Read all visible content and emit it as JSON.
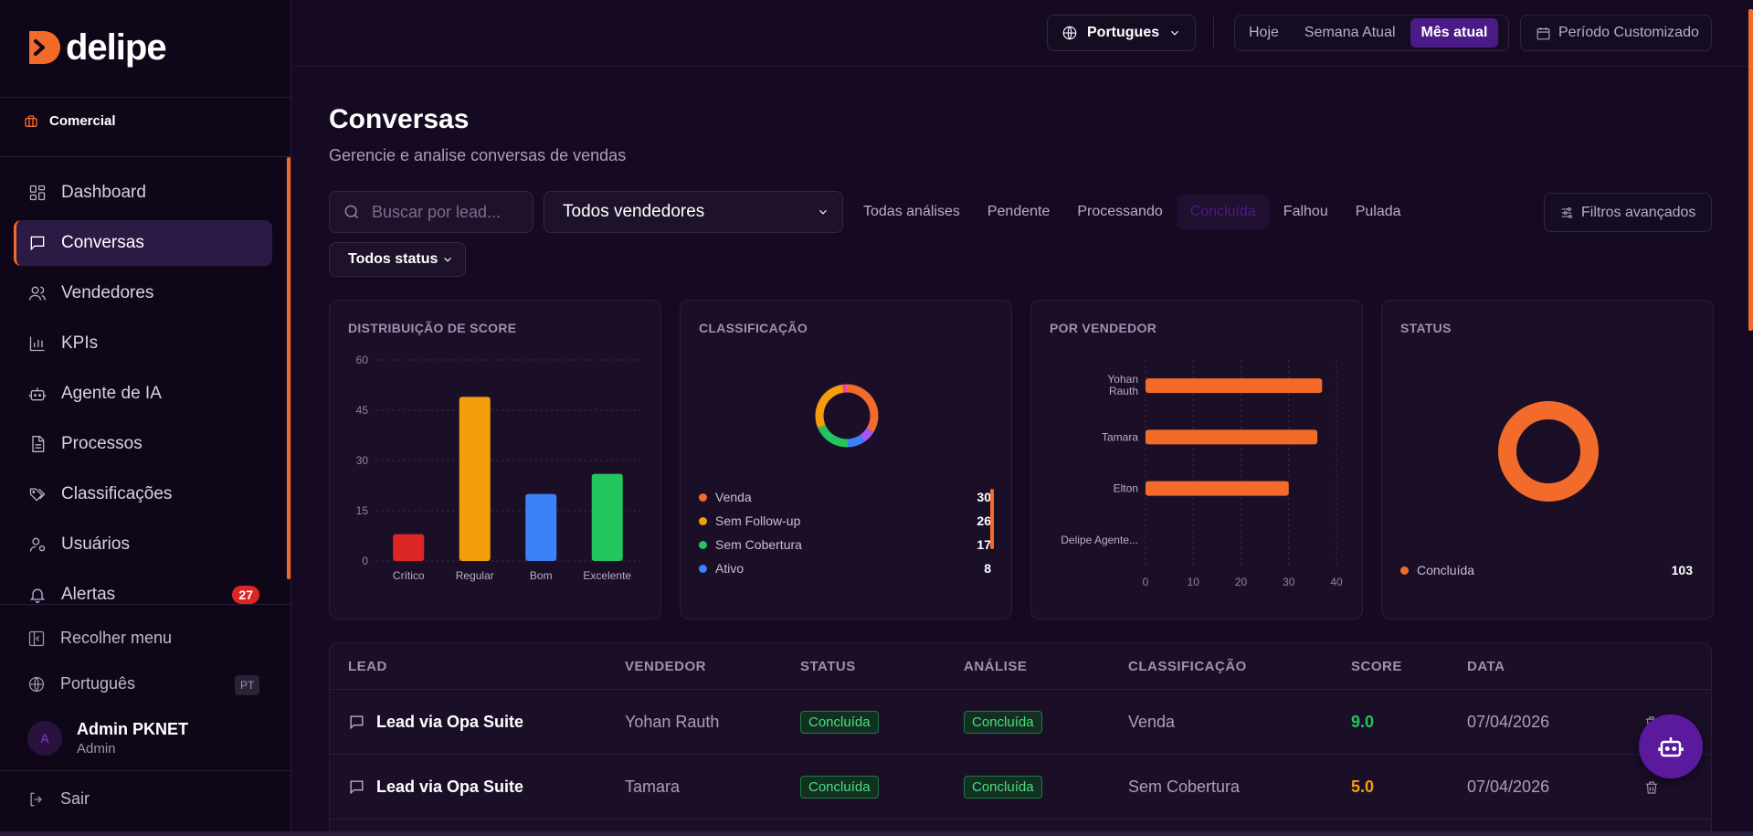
{
  "brand": {
    "name": "delipe",
    "accent": "#f26b2b",
    "purple": "#4a1a86"
  },
  "sidebar": {
    "workspace": "Comercial",
    "items": [
      {
        "label": "Dashboard",
        "icon": "grid-icon"
      },
      {
        "label": "Conversas",
        "icon": "message-icon",
        "active": true
      },
      {
        "label": "Vendedores",
        "icon": "users-icon"
      },
      {
        "label": "KPIs",
        "icon": "bar-chart-icon"
      },
      {
        "label": "Agente de IA",
        "icon": "bot-icon"
      },
      {
        "label": "Processos",
        "icon": "document-icon"
      },
      {
        "label": "Classificações",
        "icon": "tags-icon"
      },
      {
        "label": "Usuários",
        "icon": "user-gear-icon"
      },
      {
        "label": "Alertas",
        "icon": "bell-icon",
        "badge": "27"
      }
    ],
    "collapse": "Recolher menu",
    "language": "Português",
    "language_code": "PT",
    "user": {
      "initial": "A",
      "name": "Admin PKNET",
      "role": "Admin"
    },
    "logout": "Sair"
  },
  "topbar": {
    "language": "Portugues",
    "periods": [
      "Hoje",
      "Semana Atual",
      "Mês atual"
    ],
    "active_period": "Mês atual",
    "custom_period": "Período Customizado"
  },
  "page": {
    "title": "Conversas",
    "subtitle": "Gerencie e analise conversas de vendas"
  },
  "filters": {
    "search_placeholder": "Buscar por lead...",
    "seller": "Todos vendedores",
    "tabs": [
      "Todas análises",
      "Pendente",
      "Processando",
      "Concluída",
      "Falhou",
      "Pulada"
    ],
    "active_tab": "Concluída",
    "advanced": "Filtros avançados",
    "status": "Todos status"
  },
  "cards": {
    "score_title": "DISTRIBUIÇÃO DE SCORE",
    "classification_title": "CLASSIFICAÇÃO",
    "seller_title": "POR VENDEDOR",
    "status_title": "STATUS"
  },
  "chart_data": [
    {
      "type": "bar",
      "title": "DISTRIBUIÇÃO DE SCORE",
      "categories": [
        "Crítico",
        "Regular",
        "Bom",
        "Excelente"
      ],
      "values": [
        8,
        49,
        20,
        26
      ],
      "colors": [
        "#dc2626",
        "#f59e0b",
        "#3b82f6",
        "#22c55e"
      ],
      "yticks": [
        0,
        15,
        30,
        45,
        60
      ],
      "ylim": [
        0,
        60
      ],
      "grid": true
    },
    {
      "type": "pie",
      "title": "CLASSIFICAÇÃO",
      "labels": [
        "Venda",
        "Sem Follow-up",
        "Sem Cobertura",
        "Ativo"
      ],
      "values": [
        30,
        26,
        17,
        8
      ],
      "colors": [
        "#f26b2b",
        "#f59e0b",
        "#22c55e",
        "#3b82f6"
      ],
      "extra_slices": [
        {
          "color": "#a855f7",
          "value": 6
        },
        {
          "color": "#ec4899",
          "value": 2
        }
      ]
    },
    {
      "type": "bar",
      "orientation": "horizontal",
      "title": "POR VENDEDOR",
      "categories": [
        "Yohan Rauth",
        "Tamara",
        "Elton",
        "Delipe Agente..."
      ],
      "values": [
        37,
        36,
        30,
        0
      ],
      "color": "#f26b2b",
      "xticks": [
        0,
        10,
        20,
        30,
        40
      ],
      "xlim": [
        0,
        40
      ],
      "grid": true
    },
    {
      "type": "pie",
      "title": "STATUS",
      "labels": [
        "Concluída"
      ],
      "values": [
        103
      ],
      "colors": [
        "#f26b2b"
      ]
    }
  ],
  "table": {
    "headers": [
      "LEAD",
      "VENDEDOR",
      "STATUS",
      "ANÁLISE",
      "CLASSIFICAÇÃO",
      "SCORE",
      "DATA"
    ],
    "rows": [
      {
        "lead": "Lead via Opa Suite",
        "seller": "Yohan Rauth",
        "status": "Concluída",
        "analysis": "Concluída",
        "classification": "Venda",
        "score": "9.0",
        "score_color": "#22c55e",
        "date": "07/04/2026"
      },
      {
        "lead": "Lead via Opa Suite",
        "seller": "Tamara",
        "status": "Concluída",
        "analysis": "Concluída",
        "classification": "Sem Cobertura",
        "score": "5.0",
        "score_color": "#f59e0b",
        "date": "07/04/2026"
      }
    ]
  }
}
